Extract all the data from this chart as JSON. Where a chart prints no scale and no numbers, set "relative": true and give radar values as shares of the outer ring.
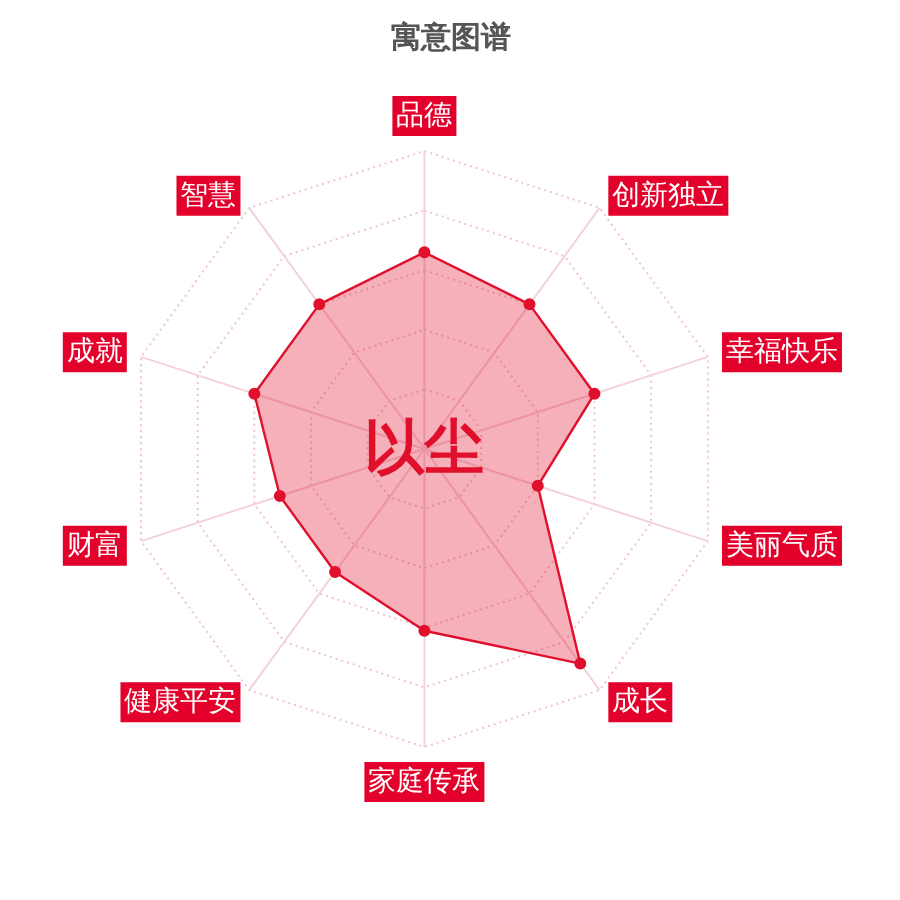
{
  "chart_data": {
    "type": "radar",
    "title": "寓意图谱",
    "categories": [
      "品德",
      "创新独立",
      "幸福快乐",
      "美丽气质",
      "成长",
      "家庭传承",
      "健康平安",
      "财富",
      "成就",
      "智慧"
    ],
    "series": [
      {
        "color": "#e0102d",
        "values": [
          0.66,
          0.6,
          0.6,
          0.4,
          0.89,
          0.61,
          0.51,
          0.51,
          0.6,
          0.6
        ]
      }
    ],
    "relative": true,
    "grid": true,
    "marker": "circle",
    "annotations": [
      "以尘"
    ]
  }
}
